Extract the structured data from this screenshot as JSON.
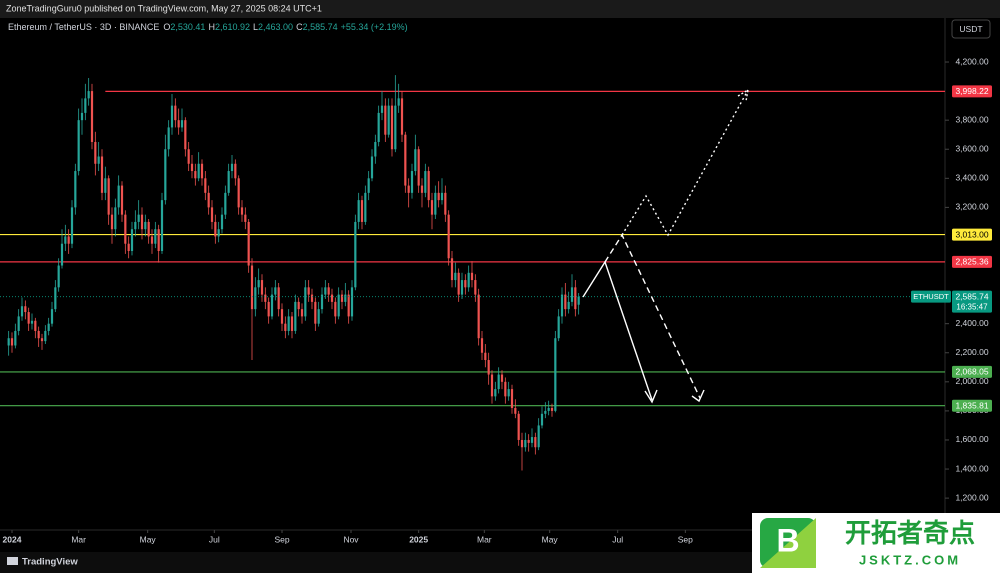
{
  "published": "ZoneTradingGuru0 published on TradingView.com, May 27, 2025 08:24 UTC+1",
  "footer": "TradingView",
  "currency_button": "USDT",
  "watermark": {
    "logo": "B",
    "title": "开拓者奇点",
    "site": "JSKTZ.COM"
  },
  "chart_data": {
    "type": "candlestick",
    "symbol": "Ethereum / TetherUS · 3D · BINANCE",
    "legend": [
      {
        "key": "O",
        "value": "2,530.41"
      },
      {
        "key": "H",
        "value": "2,610.92"
      },
      {
        "key": "L",
        "value": "2,463.00"
      },
      {
        "key": "C",
        "value": "2,585.74"
      }
    ],
    "change": "+55.34 (+2.19%)",
    "up_color": "#26a69a",
    "down_color": "#ef5350",
    "xlim": [
      -3.6,
      279.9
    ],
    "ylim": [
      980.7,
      4502.8
    ],
    "xticks": [
      {
        "value": 0,
        "label": "2024"
      },
      {
        "value": 20,
        "label": "Mar"
      },
      {
        "value": 40.7,
        "label": "May"
      },
      {
        "value": 60.7,
        "label": "Jul"
      },
      {
        "value": 81,
        "label": "Sep"
      },
      {
        "value": 101.7,
        "label": "Nov"
      },
      {
        "value": 122,
        "label": "2025"
      },
      {
        "value": 141.7,
        "label": "Mar"
      },
      {
        "value": 161.3,
        "label": "May"
      },
      {
        "value": 181.7,
        "label": "Jul"
      },
      {
        "value": 202,
        "label": "Sep"
      }
    ],
    "yticks": [
      {
        "value": 4200,
        "label": "4,200.00"
      },
      {
        "value": 3800,
        "label": "3,800.00"
      },
      {
        "value": 3600,
        "label": "3,600.00"
      },
      {
        "value": 3400,
        "label": "3,400.00"
      },
      {
        "value": 3200,
        "label": "3,200.00"
      },
      {
        "value": 2400,
        "label": "2,400.00"
      },
      {
        "value": 2200,
        "label": "2,200.00"
      },
      {
        "value": 2000,
        "label": "2,000.00"
      },
      {
        "value": 1800,
        "label": "1,800.00"
      },
      {
        "value": 1600,
        "label": "1,600.00"
      },
      {
        "value": 1400,
        "label": "1,400.00"
      },
      {
        "value": 1200,
        "label": "1,200.00"
      }
    ],
    "levels": [
      {
        "value": 3998.22,
        "label": "3,998.22",
        "color": "#f23645",
        "from_x": 28
      },
      {
        "value": 3013.0,
        "label": "3,013.00",
        "color": "#ffeb3b"
      },
      {
        "value": 2825.36,
        "label": "2,825.36",
        "color": "#f23645"
      },
      {
        "value": 2068.05,
        "label": "2,068.05",
        "color": "#4caf50"
      },
      {
        "value": 1835.81,
        "label": "1,835.81",
        "color": "#4caf50"
      }
    ],
    "last_price": {
      "value": 2585.74,
      "label": "2,585.74",
      "symbol": "ETHUSDT",
      "countdown": "16:35:47",
      "color": "#089981"
    },
    "x": [
      -1,
      0,
      1,
      2,
      3,
      4,
      5,
      6,
      7,
      8,
      9,
      10,
      11,
      12,
      13,
      14,
      15,
      16,
      17,
      18,
      19,
      20,
      21,
      22,
      23,
      24,
      25,
      26,
      27,
      28,
      29,
      30,
      31,
      32,
      33,
      34,
      35,
      36,
      37,
      38,
      39,
      40,
      41,
      42,
      43,
      44,
      45,
      46,
      47,
      48,
      49,
      50,
      51,
      52,
      53,
      54,
      55,
      56,
      57,
      58,
      59,
      60,
      61,
      62,
      63,
      64,
      65,
      66,
      67,
      68,
      69,
      70,
      71,
      72,
      73,
      74,
      75,
      76,
      77,
      78,
      79,
      80,
      81,
      82,
      83,
      84,
      85,
      86,
      87,
      88,
      89,
      90,
      91,
      92,
      93,
      94,
      95,
      96,
      97,
      98,
      99,
      100,
      101,
      102,
      103,
      104,
      105,
      106,
      107,
      108,
      109,
      110,
      111,
      112,
      113,
      114,
      115,
      116,
      117,
      118,
      119,
      120,
      121,
      122,
      123,
      124,
      125,
      126,
      127,
      128,
      129,
      130,
      131,
      132,
      133,
      134,
      135,
      136,
      137,
      138,
      139,
      140,
      141,
      142,
      143,
      144,
      145,
      146,
      147,
      148,
      149,
      150,
      151,
      152,
      153,
      154,
      155,
      156,
      157,
      158,
      159,
      160,
      161,
      162,
      163,
      164,
      165,
      166,
      167,
      168,
      169,
      170
    ],
    "ohlc": [
      [
        2250,
        2350,
        2180,
        2300
      ],
      [
        2300,
        2340,
        2200,
        2250
      ],
      [
        2250,
        2400,
        2230,
        2350
      ],
      [
        2350,
        2500,
        2320,
        2450
      ],
      [
        2450,
        2580,
        2420,
        2520
      ],
      [
        2520,
        2560,
        2430,
        2480
      ],
      [
        2480,
        2510,
        2350,
        2400
      ],
      [
        2400,
        2470,
        2360,
        2420
      ],
      [
        2420,
        2440,
        2300,
        2350
      ],
      [
        2350,
        2380,
        2240,
        2300
      ],
      [
        2300,
        2330,
        2220,
        2280
      ],
      [
        2280,
        2390,
        2260,
        2350
      ],
      [
        2350,
        2440,
        2320,
        2400
      ],
      [
        2400,
        2550,
        2380,
        2500
      ],
      [
        2500,
        2700,
        2480,
        2650
      ],
      [
        2650,
        2850,
        2620,
        2800
      ],
      [
        2800,
        3050,
        2780,
        2950
      ],
      [
        2950,
        3080,
        2900,
        3000
      ],
      [
        3000,
        3050,
        2880,
        2950
      ],
      [
        2950,
        3250,
        2920,
        3200
      ],
      [
        3200,
        3500,
        3150,
        3450
      ],
      [
        3450,
        3880,
        3420,
        3800
      ],
      [
        3800,
        3950,
        3700,
        3850
      ],
      [
        3850,
        4050,
        3800,
        3950
      ],
      [
        3950,
        4090,
        3900,
        4000
      ],
      [
        4000,
        4050,
        3600,
        3650
      ],
      [
        3650,
        3720,
        3420,
        3500
      ],
      [
        3500,
        3650,
        3450,
        3550
      ],
      [
        3550,
        3600,
        3250,
        3300
      ],
      [
        3300,
        3480,
        3250,
        3400
      ],
      [
        3400,
        3420,
        3080,
        3150
      ],
      [
        3150,
        3200,
        2950,
        3050
      ],
      [
        3050,
        3260,
        3000,
        3200
      ],
      [
        3200,
        3420,
        3150,
        3350
      ],
      [
        3350,
        3380,
        3100,
        3150
      ],
      [
        3150,
        3180,
        2880,
        2950
      ],
      [
        2950,
        3000,
        2850,
        2900
      ],
      [
        2900,
        3100,
        2870,
        3050
      ],
      [
        3050,
        3180,
        3000,
        3100
      ],
      [
        3100,
        3250,
        3050,
        3150
      ],
      [
        3150,
        3200,
        2980,
        3050
      ],
      [
        3050,
        3150,
        3000,
        3100
      ],
      [
        3100,
        3120,
        2950,
        3000
      ],
      [
        3000,
        3050,
        2880,
        2950
      ],
      [
        2950,
        3100,
        2920,
        3050
      ],
      [
        3050,
        3080,
        2820,
        2900
      ],
      [
        2900,
        3300,
        2880,
        3250
      ],
      [
        3250,
        3700,
        3220,
        3600
      ],
      [
        3600,
        3800,
        3550,
        3750
      ],
      [
        3750,
        3980,
        3700,
        3900
      ],
      [
        3900,
        3950,
        3750,
        3800
      ],
      [
        3800,
        3880,
        3700,
        3750
      ],
      [
        3750,
        3880,
        3720,
        3800
      ],
      [
        3800,
        3820,
        3550,
        3600
      ],
      [
        3600,
        3650,
        3450,
        3500
      ],
      [
        3500,
        3560,
        3400,
        3450
      ],
      [
        3450,
        3500,
        3350,
        3400
      ],
      [
        3400,
        3580,
        3380,
        3500
      ],
      [
        3500,
        3530,
        3350,
        3400
      ],
      [
        3400,
        3450,
        3250,
        3300
      ],
      [
        3300,
        3350,
        3150,
        3200
      ],
      [
        3200,
        3250,
        3050,
        3100
      ],
      [
        3100,
        3150,
        2950,
        3000
      ],
      [
        3000,
        3100,
        2960,
        3050
      ],
      [
        3050,
        3200,
        3020,
        3150
      ],
      [
        3150,
        3350,
        3120,
        3300
      ],
      [
        3300,
        3500,
        3280,
        3450
      ],
      [
        3450,
        3560,
        3400,
        3500
      ],
      [
        3500,
        3530,
        3350,
        3400
      ],
      [
        3400,
        3420,
        3150,
        3200
      ],
      [
        3200,
        3250,
        3100,
        3150
      ],
      [
        3150,
        3200,
        3050,
        3100
      ],
      [
        3100,
        3120,
        2750,
        2800
      ],
      [
        2800,
        2850,
        2150,
        2500
      ],
      [
        2500,
        2720,
        2450,
        2650
      ],
      [
        2650,
        2780,
        2600,
        2700
      ],
      [
        2700,
        2740,
        2550,
        2600
      ],
      [
        2600,
        2650,
        2500,
        2550
      ],
      [
        2550,
        2580,
        2400,
        2450
      ],
      [
        2450,
        2650,
        2430,
        2600
      ],
      [
        2600,
        2700,
        2560,
        2650
      ],
      [
        2650,
        2680,
        2450,
        2500
      ],
      [
        2500,
        2540,
        2350,
        2400
      ],
      [
        2400,
        2450,
        2300,
        2350
      ],
      [
        2350,
        2500,
        2320,
        2450
      ],
      [
        2450,
        2480,
        2300,
        2350
      ],
      [
        2350,
        2600,
        2330,
        2550
      ],
      [
        2550,
        2580,
        2450,
        2500
      ],
      [
        2500,
        2540,
        2400,
        2450
      ],
      [
        2450,
        2700,
        2420,
        2650
      ],
      [
        2650,
        2700,
        2550,
        2600
      ],
      [
        2600,
        2640,
        2500,
        2550
      ],
      [
        2550,
        2580,
        2350,
        2400
      ],
      [
        2400,
        2550,
        2380,
        2500
      ],
      [
        2500,
        2650,
        2470,
        2600
      ],
      [
        2600,
        2700,
        2570,
        2650
      ],
      [
        2650,
        2680,
        2550,
        2600
      ],
      [
        2600,
        2640,
        2500,
        2550
      ],
      [
        2550,
        2580,
        2400,
        2450
      ],
      [
        2450,
        2650,
        2430,
        2600
      ],
      [
        2600,
        2630,
        2500,
        2550
      ],
      [
        2550,
        2680,
        2520,
        2600
      ],
      [
        2600,
        2630,
        2400,
        2450
      ],
      [
        2450,
        2700,
        2420,
        2650
      ],
      [
        2650,
        3150,
        2630,
        3100
      ],
      [
        3100,
        3300,
        3050,
        3250
      ],
      [
        3250,
        3280,
        3050,
        3100
      ],
      [
        3100,
        3350,
        3080,
        3300
      ],
      [
        3300,
        3450,
        3250,
        3400
      ],
      [
        3400,
        3600,
        3380,
        3550
      ],
      [
        3550,
        3700,
        3500,
        3650
      ],
      [
        3650,
        3900,
        3620,
        3850
      ],
      [
        3850,
        4000,
        3800,
        3900
      ],
      [
        3900,
        3950,
        3650,
        3700
      ],
      [
        3700,
        3950,
        3680,
        3900
      ],
      [
        3900,
        3950,
        3550,
        3600
      ],
      [
        3600,
        4110,
        3580,
        3900
      ],
      [
        3900,
        4050,
        3850,
        3950
      ],
      [
        3950,
        4000,
        3650,
        3700
      ],
      [
        3700,
        3720,
        3300,
        3350
      ],
      [
        3350,
        3400,
        3200,
        3300
      ],
      [
        3300,
        3500,
        3260,
        3450
      ],
      [
        3450,
        3700,
        3420,
        3600
      ],
      [
        3600,
        3620,
        3300,
        3350
      ],
      [
        3350,
        3400,
        3200,
        3300
      ],
      [
        3300,
        3500,
        3270,
        3450
      ],
      [
        3450,
        3480,
        3200,
        3250
      ],
      [
        3250,
        3300,
        3050,
        3150
      ],
      [
        3150,
        3350,
        3120,
        3300
      ],
      [
        3300,
        3380,
        3200,
        3250
      ],
      [
        3250,
        3400,
        3220,
        3300
      ],
      [
        3300,
        3350,
        3100,
        3150
      ],
      [
        3150,
        3180,
        2800,
        2850
      ],
      [
        2850,
        2900,
        2650,
        2700
      ],
      [
        2700,
        2820,
        2650,
        2750
      ],
      [
        2750,
        2780,
        2550,
        2600
      ],
      [
        2600,
        2750,
        2570,
        2700
      ],
      [
        2700,
        2740,
        2600,
        2650
      ],
      [
        2650,
        2800,
        2620,
        2750
      ],
      [
        2750,
        2830,
        2650,
        2700
      ],
      [
        2700,
        2740,
        2550,
        2600
      ],
      [
        2600,
        2640,
        2250,
        2300
      ],
      [
        2300,
        2350,
        2150,
        2200
      ],
      [
        2200,
        2260,
        2100,
        2150
      ],
      [
        2150,
        2200,
        1980,
        2050
      ],
      [
        2050,
        2080,
        1850,
        1900
      ],
      [
        1900,
        2000,
        1870,
        1950
      ],
      [
        1950,
        2100,
        1920,
        2050
      ],
      [
        2050,
        2080,
        1950,
        2000
      ],
      [
        2000,
        2030,
        1850,
        1900
      ],
      [
        1900,
        2000,
        1870,
        1950
      ],
      [
        1950,
        1980,
        1780,
        1820
      ],
      [
        1820,
        1880,
        1750,
        1780
      ],
      [
        1780,
        1800,
        1560,
        1600
      ],
      [
        1600,
        1650,
        1390,
        1550
      ],
      [
        1550,
        1650,
        1520,
        1600
      ],
      [
        1600,
        1640,
        1520,
        1580
      ],
      [
        1580,
        1680,
        1550,
        1620
      ],
      [
        1620,
        1650,
        1500,
        1550
      ],
      [
        1550,
        1750,
        1530,
        1700
      ],
      [
        1700,
        1830,
        1680,
        1780
      ],
      [
        1780,
        1860,
        1750,
        1800
      ],
      [
        1800,
        1870,
        1770,
        1820
      ],
      [
        1820,
        1850,
        1760,
        1800
      ],
      [
        1800,
        2350,
        1790,
        2300
      ],
      [
        2300,
        2500,
        2280,
        2450
      ],
      [
        2450,
        2650,
        2400,
        2600
      ],
      [
        2600,
        2680,
        2450,
        2500
      ],
      [
        2500,
        2620,
        2470,
        2550
      ],
      [
        2550,
        2740,
        2520,
        2650
      ],
      [
        2650,
        2700,
        2450,
        2500
      ],
      [
        2530.41,
        2610.92,
        2463,
        2585.74
      ]
    ]
  }
}
